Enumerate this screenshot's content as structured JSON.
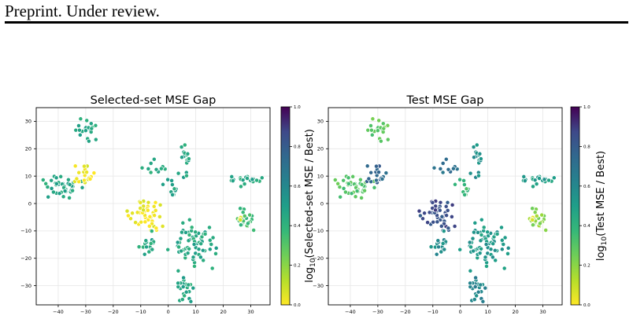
{
  "header": {
    "text": "Preprint. Under review."
  },
  "colors": {
    "viridis_low": "#fde725",
    "viridis_mid": "#21918c",
    "viridis_high": "#440154",
    "grid": "#e6e6e6"
  },
  "chart_data": [
    {
      "type": "scatter",
      "title": "Selected-set MSE Gap",
      "xlabel": "",
      "ylabel": "",
      "xlim": [
        -48,
        37
      ],
      "ylim": [
        -37,
        35
      ],
      "x_ticks": [
        -40,
        -30,
        -20,
        -10,
        0,
        10,
        20,
        30
      ],
      "y_ticks": [
        -30,
        -20,
        -10,
        0,
        10,
        20,
        30
      ],
      "grid": true,
      "colorbar": {
        "label": "log10(Selected-set MSE / Best)",
        "label_main": "log",
        "label_sub": "10",
        "label_rest": "(Selected-set MSE / Best)",
        "range": [
          0,
          1
        ],
        "ticks": [
          0.0,
          0.2,
          0.4,
          0.6,
          0.8,
          1.0
        ],
        "colormap": "viridis_r"
      },
      "clusters": [
        {
          "x": -30,
          "y": 27,
          "color_value": 0.45
        },
        {
          "x": -38,
          "y": 6,
          "color_value": 0.45
        },
        {
          "x": -30,
          "y": 10,
          "color_value": 0.02
        },
        {
          "x": -8,
          "y": -4,
          "color_value": 0.02
        },
        {
          "x": -6,
          "y": 13,
          "color_value": 0.45
        },
        {
          "x": 6,
          "y": 17,
          "color_value": 0.45
        },
        {
          "x": 1,
          "y": 6,
          "color_value": 0.45
        },
        {
          "x": 10,
          "y": -15,
          "color_value": 0.45
        },
        {
          "x": -7,
          "y": -15,
          "color_value": 0.45
        },
        {
          "x": 6,
          "y": -31,
          "color_value": 0.45
        },
        {
          "x": 28,
          "y": 9,
          "color_value": 0.45
        },
        {
          "x": 27,
          "y": -5,
          "color_value": 0.35
        },
        {
          "x": 26,
          "y": -6,
          "color_value": 0.05
        }
      ]
    },
    {
      "type": "scatter",
      "title": "Test MSE Gap",
      "xlabel": "",
      "ylabel": "",
      "xlim": [
        -48,
        37
      ],
      "ylim": [
        -37,
        35
      ],
      "x_ticks": [
        -40,
        -30,
        -20,
        -10,
        0,
        10,
        20,
        30
      ],
      "y_ticks": [
        -30,
        -20,
        -10,
        0,
        10,
        20,
        30
      ],
      "grid": true,
      "colorbar": {
        "label": "log10(Test MSE / Best)",
        "label_main": "log",
        "label_sub": "10",
        "label_rest": "(Test MSE / Best)",
        "range": [
          0,
          1
        ],
        "ticks": [
          0.0,
          0.2,
          0.4,
          0.6,
          0.8,
          1.0
        ],
        "colormap": "viridis_r"
      },
      "clusters": [
        {
          "x": -30,
          "y": 27,
          "color_value": 0.28
        },
        {
          "x": -38,
          "y": 6,
          "color_value": 0.3
        },
        {
          "x": -30,
          "y": 10,
          "color_value": 0.75
        },
        {
          "x": -8,
          "y": -4,
          "color_value": 0.85
        },
        {
          "x": -6,
          "y": 13,
          "color_value": 0.72
        },
        {
          "x": 6,
          "y": 17,
          "color_value": 0.55
        },
        {
          "x": 1,
          "y": 6,
          "color_value": 0.35
        },
        {
          "x": 10,
          "y": -15,
          "color_value": 0.52
        },
        {
          "x": -7,
          "y": -15,
          "color_value": 0.58
        },
        {
          "x": 6,
          "y": -31,
          "color_value": 0.6
        },
        {
          "x": 28,
          "y": 9,
          "color_value": 0.5
        },
        {
          "x": 27,
          "y": -5,
          "color_value": 0.2
        },
        {
          "x": 26,
          "y": -6,
          "color_value": 0.05
        }
      ]
    }
  ]
}
